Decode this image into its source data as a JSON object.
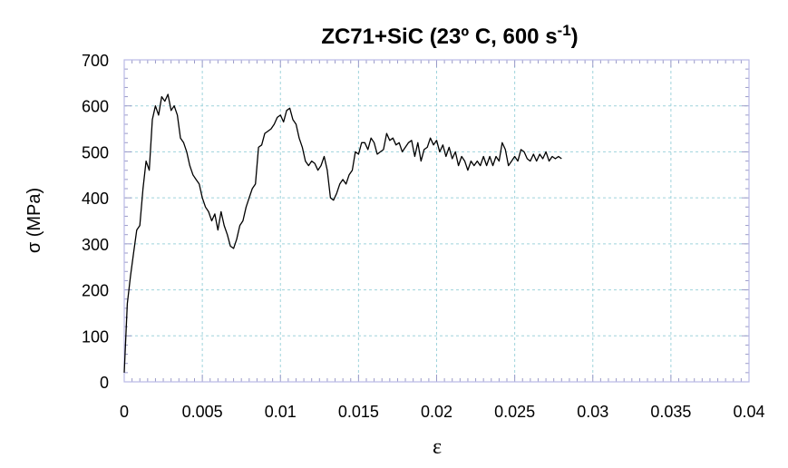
{
  "chart_data": {
    "type": "line",
    "title": "ZC71+SiC (23º C, 600 s",
    "title_superscript": "-1",
    "title_close": ")",
    "xlabel": "ε",
    "ylabel": "σ (MPa)",
    "xlim": [
      0,
      0.04
    ],
    "ylim": [
      0,
      700
    ],
    "x_ticks": [
      "0",
      "0.005",
      "0.01",
      "0.015",
      "0.02",
      "0.025",
      "0.03",
      "0.035",
      "0.04"
    ],
    "y_ticks": [
      "0",
      "100",
      "200",
      "300",
      "400",
      "500",
      "600",
      "700"
    ],
    "grid": true,
    "series": [
      {
        "color": "#000000",
        "x": [
          0,
          0.0002,
          0.0004,
          0.0006,
          0.0008,
          0.001,
          0.0012,
          0.0014,
          0.0016,
          0.0018,
          0.002,
          0.0022,
          0.0024,
          0.0026,
          0.0028,
          0.003,
          0.0032,
          0.0034,
          0.0036,
          0.0038,
          0.004,
          0.0042,
          0.0044,
          0.0046,
          0.0048,
          0.005,
          0.0052,
          0.0054,
          0.0056,
          0.0058,
          0.006,
          0.0062,
          0.0064,
          0.0066,
          0.0068,
          0.007,
          0.0072,
          0.0074,
          0.0076,
          0.0078,
          0.008,
          0.0082,
          0.0084,
          0.0086,
          0.0088,
          0.009,
          0.0092,
          0.0094,
          0.0096,
          0.0098,
          0.01,
          0.0102,
          0.0104,
          0.0106,
          0.0108,
          0.011,
          0.0112,
          0.0114,
          0.0116,
          0.0118,
          0.012,
          0.0122,
          0.0124,
          0.0126,
          0.0128,
          0.013,
          0.0132,
          0.0134,
          0.0136,
          0.0138,
          0.014,
          0.0142,
          0.0144,
          0.0146,
          0.0148,
          0.015,
          0.0152,
          0.0154,
          0.0156,
          0.0158,
          0.016,
          0.0162,
          0.0164,
          0.0166,
          0.0168,
          0.017,
          0.0172,
          0.0174,
          0.0176,
          0.0178,
          0.018,
          0.0182,
          0.0184,
          0.0186,
          0.0188,
          0.019,
          0.0192,
          0.0194,
          0.0196,
          0.0198,
          0.02,
          0.0202,
          0.0204,
          0.0206,
          0.0208,
          0.021,
          0.0212,
          0.0214,
          0.0216,
          0.0218,
          0.022,
          0.0222,
          0.0224,
          0.0226,
          0.0228,
          0.023,
          0.0232,
          0.0234,
          0.0236,
          0.0238,
          0.024,
          0.0242,
          0.0244,
          0.0246,
          0.0248,
          0.025,
          0.0252,
          0.0254,
          0.0256,
          0.0258,
          0.026,
          0.0262,
          0.0264,
          0.0266,
          0.0268,
          0.027,
          0.0272,
          0.0274,
          0.0276,
          0.0278,
          0.028
        ],
        "y": [
          20,
          170,
          230,
          280,
          330,
          340,
          420,
          480,
          460,
          570,
          600,
          580,
          620,
          610,
          625,
          590,
          600,
          580,
          530,
          520,
          500,
          470,
          450,
          440,
          430,
          400,
          380,
          370,
          350,
          365,
          330,
          370,
          340,
          320,
          295,
          290,
          310,
          340,
          350,
          380,
          400,
          420,
          430,
          510,
          515,
          540,
          545,
          550,
          560,
          575,
          580,
          565,
          590,
          595,
          570,
          560,
          530,
          510,
          480,
          470,
          480,
          475,
          460,
          470,
          490,
          460,
          400,
          395,
          410,
          430,
          440,
          430,
          450,
          460,
          500,
          495,
          520,
          520,
          505,
          530,
          520,
          495,
          500,
          505,
          540,
          525,
          530,
          515,
          520,
          500,
          510,
          520,
          525,
          490,
          520,
          480,
          505,
          510,
          530,
          515,
          525,
          500,
          515,
          490,
          510,
          485,
          500,
          470,
          490,
          480,
          460,
          480,
          470,
          480,
          470,
          490,
          470,
          490,
          470,
          490,
          480,
          520,
          505,
          470,
          480,
          490,
          480,
          505,
          500,
          485,
          480,
          495,
          480,
          495,
          485,
          500,
          480,
          490,
          485,
          490,
          485
        ]
      }
    ]
  }
}
